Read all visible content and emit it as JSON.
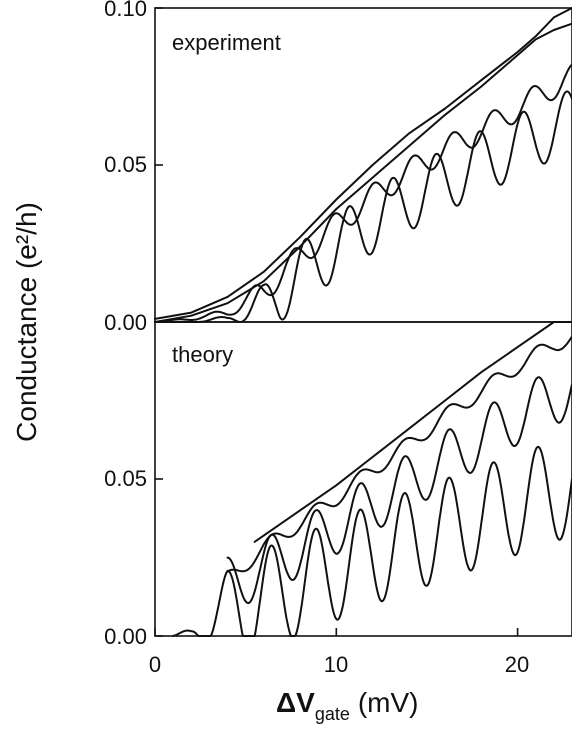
{
  "chart_data": [
    {
      "type": "line",
      "panel_label": "experiment",
      "xlim": [
        0,
        23
      ],
      "ylim": [
        0,
        0.1
      ],
      "yticks": [
        0.0,
        0.05,
        0.1
      ],
      "ytick_labels": [
        "0.00",
        "0.05",
        "0.10"
      ],
      "series": [
        {
          "x": [
            0,
            2,
            4,
            6,
            8,
            10,
            12,
            14,
            16,
            18,
            20,
            21,
            22,
            23
          ],
          "y": [
            0.001,
            0.003,
            0.008,
            0.016,
            0.027,
            0.039,
            0.05,
            0.06,
            0.068,
            0.077,
            0.086,
            0.091,
            0.097,
            0.1
          ]
        },
        {
          "x": [
            0,
            2,
            4,
            6,
            8,
            10,
            12,
            14,
            16,
            18,
            20,
            21,
            22,
            23
          ],
          "y": [
            0.0,
            0.002,
            0.006,
            0.013,
            0.024,
            0.036,
            0.046,
            0.056,
            0.066,
            0.075,
            0.085,
            0.09,
            0.093,
            0.095
          ]
        },
        {
          "base": {
            "x": [
              0,
              2,
              4,
              6,
              8,
              10,
              12,
              14,
              16,
              18,
              20,
              22,
              23
            ],
            "y": [
              0.0,
              0.001,
              0.003,
              0.01,
              0.021,
              0.031,
              0.04,
              0.048,
              0.055,
              0.061,
              0.068,
              0.075,
              0.078
            ]
          },
          "oscillation": {
            "amplitude": 0.004,
            "period": 2.2,
            "phase": 0.5
          }
        },
        {
          "base": {
            "x": [
              0,
              2,
              4,
              6,
              8,
              10,
              12,
              14,
              16,
              18,
              20,
              22,
              23
            ],
            "y": [
              0.0,
              0.0,
              0.001,
              0.006,
              0.015,
              0.024,
              0.032,
              0.039,
              0.045,
              0.051,
              0.056,
              0.062,
              0.064
            ]
          },
          "oscillation": {
            "amplitude": 0.01,
            "period": 2.4,
            "phase": 0.5
          }
        }
      ]
    },
    {
      "type": "line",
      "panel_label": "theory",
      "xlim": [
        0,
        23
      ],
      "ylim": [
        0,
        0.1
      ],
      "yticks": [
        0.0,
        0.05
      ],
      "ytick_labels": [
        "0.00",
        "0.05"
      ],
      "xticks": [
        0,
        10,
        20
      ],
      "xtick_labels": [
        "0",
        "10",
        "20"
      ],
      "series": [
        {
          "x": [
            5.5,
            8,
            10,
            12,
            14,
            16,
            18,
            20,
            22,
            23
          ],
          "y": [
            0.03,
            0.04,
            0.048,
            0.057,
            0.066,
            0.075,
            0.084,
            0.092,
            0.1,
            0.1
          ]
        },
        {
          "base": {
            "x": [
              4,
              6,
              8,
              10,
              12,
              14,
              16,
              18,
              20,
              22,
              23
            ],
            "y": [
              0.018,
              0.028,
              0.036,
              0.044,
              0.053,
              0.061,
              0.07,
              0.078,
              0.086,
              0.093,
              0.095
            ]
          },
          "oscillation": {
            "amplitude": 0.0025,
            "period": 2.45,
            "phase": 0.9
          }
        },
        {
          "base": {
            "x": [
              4,
              6,
              8,
              10,
              12,
              14,
              16,
              18,
              20,
              22,
              23
            ],
            "y": [
              0.016,
              0.022,
              0.028,
              0.035,
              0.042,
              0.049,
              0.056,
              0.063,
              0.07,
              0.076,
              0.079
            ]
          },
          "oscillation": {
            "amplitude": 0.009,
            "period": 2.45,
            "phase": 0.9
          }
        },
        {
          "base": {
            "x": [
              1,
              2,
              3,
              4,
              6,
              8,
              10,
              12,
              14,
              16,
              18,
              20,
              22,
              23
            ],
            "y": [
              0.0,
              0.001,
              0.004,
              0.008,
              0.012,
              0.016,
              0.021,
              0.026,
              0.03,
              0.034,
              0.038,
              0.042,
              0.046,
              0.048
            ]
          },
          "oscillation": {
            "amplitude": 0.016,
            "period": 2.45,
            "phase": 0.9
          }
        }
      ]
    }
  ],
  "axes": {
    "ylabel": "Conductance (e²/h)",
    "xlabel_main": "ΔV",
    "xlabel_sub": "gate",
    "xlabel_unit": "(mV)"
  }
}
